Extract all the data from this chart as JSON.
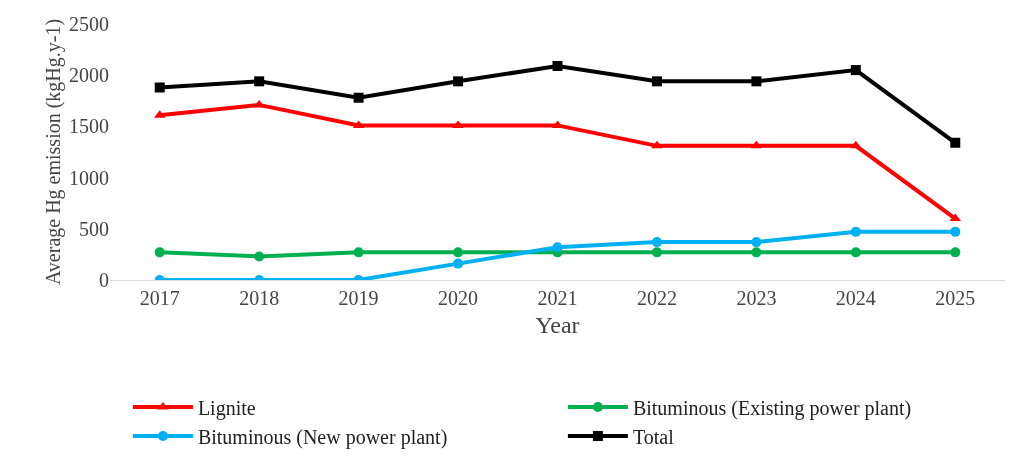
{
  "chart_data": {
    "type": "line",
    "xlabel": "Year",
    "ylabel": "Average Hg emission (kgHg.y-1)",
    "categories": [
      "2017",
      "2018",
      "2019",
      "2020",
      "2021",
      "2022",
      "2023",
      "2024",
      "2025"
    ],
    "ylim": [
      0,
      2500
    ],
    "yticks": [
      0,
      500,
      1000,
      1500,
      2000,
      2500
    ],
    "grid": false,
    "legend": "bottom",
    "line_style": "solid",
    "series": [
      {
        "name": "Lignite",
        "color": "#ff0000",
        "marker": "triangle",
        "values": [
          1610,
          1710,
          1510,
          1510,
          1510,
          1310,
          1310,
          1310,
          600
        ]
      },
      {
        "name": "Bituminous (Existing power plant)",
        "color": "#00b050",
        "marker": "circle",
        "values": [
          270,
          230,
          270,
          270,
          270,
          270,
          270,
          270,
          270
        ]
      },
      {
        "name": "Bituminous (New power plant)",
        "color": "#00b0f0",
        "marker": "circle",
        "values": [
          0,
          0,
          0,
          160,
          320,
          370,
          370,
          470,
          470
        ]
      },
      {
        "name": "Total",
        "color": "#000000",
        "marker": "square",
        "values": [
          1880,
          1940,
          1780,
          1940,
          2090,
          1940,
          1940,
          2050,
          1340
        ]
      }
    ]
  }
}
